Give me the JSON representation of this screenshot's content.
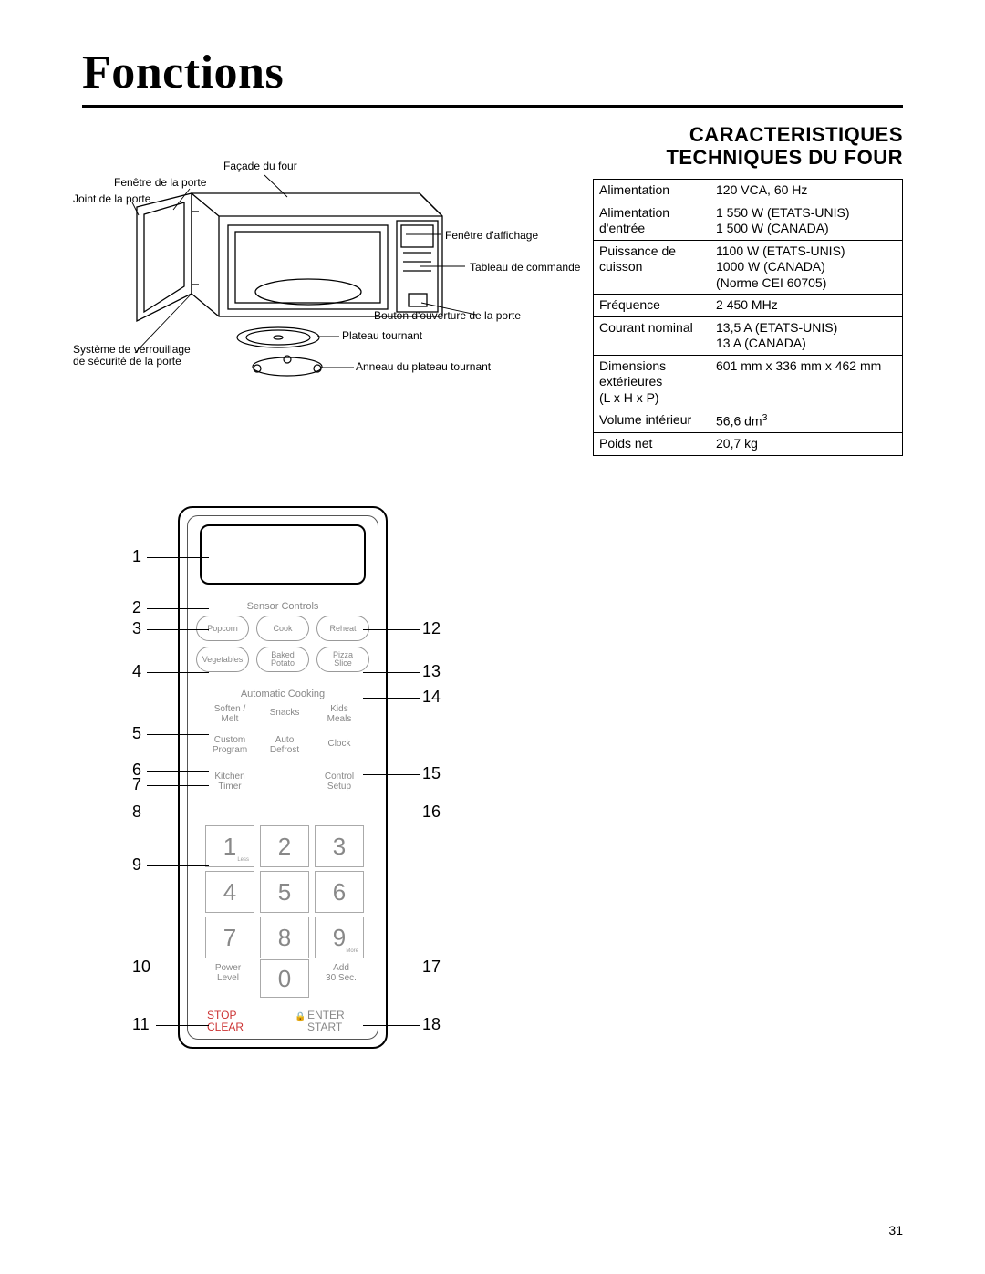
{
  "title": "Fonctions",
  "spec_heading_line1": "CARACTERISTIQUES",
  "spec_heading_line2": "TECHNIQUES DU FOUR",
  "spec_rows": [
    {
      "label": "Alimentation",
      "value": "120 VCA, 60 Hz"
    },
    {
      "label": "Alimentation d'entrée",
      "value": "1 550 W (ETATS-UNIS)\n1 500 W (CANADA)"
    },
    {
      "label": "Puissance de cuisson",
      "value": "1100 W (ETATS-UNIS)\n1000 W (CANADA)\n(Norme CEI 60705)"
    },
    {
      "label": "Fréquence",
      "value": "2 450 MHz"
    },
    {
      "label": "Courant nominal",
      "value": "13,5 A (ETATS-UNIS)\n13 A (CANADA)"
    },
    {
      "label": "Dimensions extérieures\n(L x H x P)",
      "value": "601 mm x 336 mm x 462 mm"
    },
    {
      "label": "Volume intérieur",
      "value": "56,6 dm",
      "sup": "3"
    },
    {
      "label": "Poids net",
      "value": "20,7 kg"
    }
  ],
  "mw_labels": {
    "facade": "Façade du four",
    "fenetre_porte": "Fenêtre de la porte",
    "joint": "Joint de la porte",
    "fenetre_affichage": "Fenêtre d'affichage",
    "tableau": "Tableau de commande",
    "bouton_ouverture": "Bouton d'ouverture de la porte",
    "plateau": "Plateau tournant",
    "systeme_verrou1": "Système de verrouillage",
    "systeme_verrou2": "de sécurité de la porte",
    "anneau": "Anneau du plateau tournant"
  },
  "panel": {
    "sensor_controls": "Sensor Controls",
    "popcorn": "Popcorn",
    "cook": "Cook",
    "reheat": "Reheat",
    "vegetables": "Vegetables",
    "baked_potato1": "Baked",
    "baked_potato2": "Potato",
    "pizza_slice1": "Pizza",
    "pizza_slice2": "Slice",
    "automatic_cooking": "Automatic Cooking",
    "soften_melt1": "Soften /",
    "soften_melt2": "Melt",
    "snacks": "Snacks",
    "kids_meals1": "Kids",
    "kids_meals2": "Meals",
    "custom_program1": "Custom",
    "custom_program2": "Program",
    "auto_defrost1": "Auto",
    "auto_defrost2": "Defrost",
    "clock": "Clock",
    "kitchen_timer1": "Kitchen",
    "kitchen_timer2": "Timer",
    "control_setup1": "Control",
    "control_setup2": "Setup",
    "keys": [
      "1",
      "2",
      "3",
      "4",
      "5",
      "6",
      "7",
      "8",
      "9"
    ],
    "key1_sub": "Less",
    "key9_sub": "More",
    "zero": "0",
    "power_level1": "Power",
    "power_level2": "Level",
    "add_30sec1": "Add",
    "add_30sec2": "30 Sec.",
    "stop": "STOP",
    "clear": "CLEAR",
    "enter": "ENTER",
    "start": "START"
  },
  "callouts_left": [
    "1",
    "2",
    "3",
    "4",
    "5",
    "6",
    "7",
    "8",
    "9",
    "10",
    "11"
  ],
  "callouts_right": [
    "12",
    "13",
    "14",
    "15",
    "16",
    "17",
    "18"
  ],
  "page_number": "31",
  "colors": {
    "text": "#000000",
    "panel_grey": "#888888",
    "stop_red": "#cc3333",
    "border_grey": "#aaaaaa"
  }
}
